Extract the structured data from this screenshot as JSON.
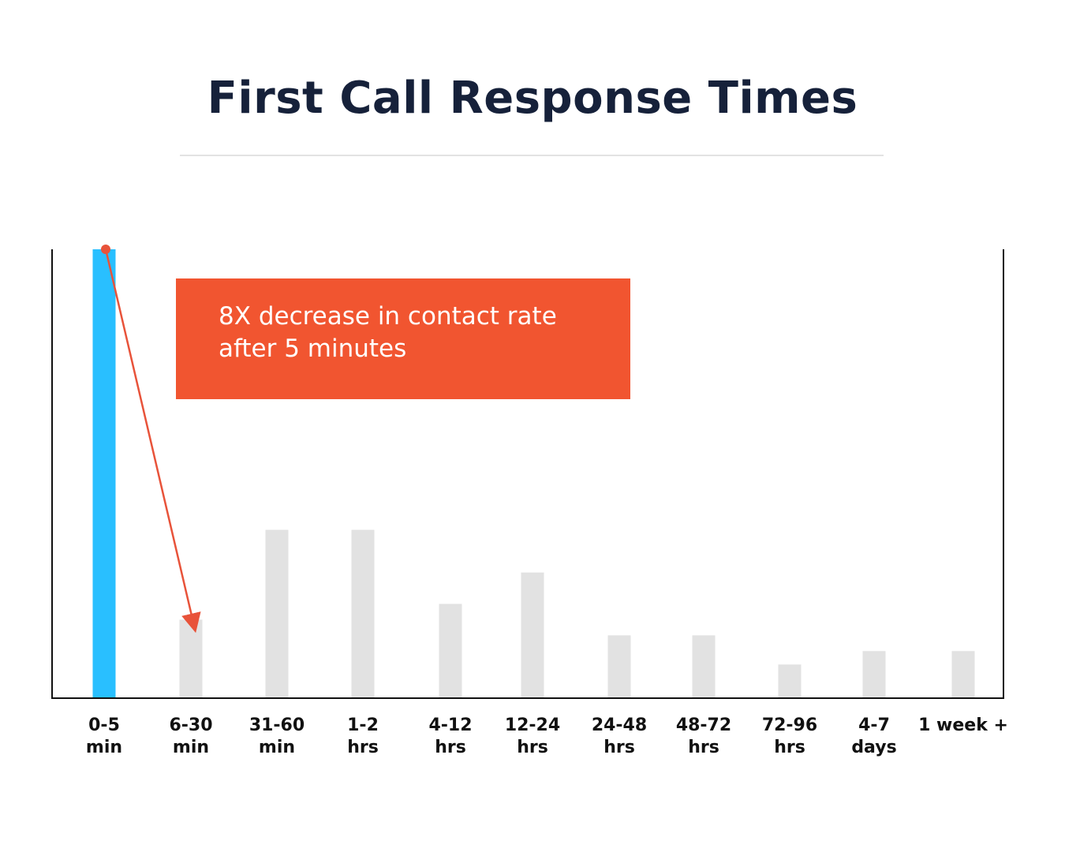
{
  "title": "First Call Response Times",
  "annotation": {
    "line1": "8X decrease in contact rate",
    "line2": "after 5 minutes",
    "color": "#f15530"
  },
  "colors": {
    "highlight": "#29bfff",
    "muted": "#e2e2e2",
    "axis": "#111111",
    "arrow": "#e8533a"
  },
  "chart_data": {
    "type": "bar",
    "title": "First Call Response Times",
    "xlabel": "",
    "ylabel": "",
    "ylim": [
      0,
      100
    ],
    "grid": false,
    "highlight_index": 0,
    "categories": [
      [
        "0-5",
        "min"
      ],
      [
        "6-30",
        "min"
      ],
      [
        "31-60",
        "min"
      ],
      [
        "1-2",
        "hrs"
      ],
      [
        "4-12",
        "hrs"
      ],
      [
        "12-24",
        "hrs"
      ],
      [
        "24-48",
        "hrs"
      ],
      [
        "48-72",
        "hrs"
      ],
      [
        "72-96",
        "hrs"
      ],
      [
        "4-7",
        "days"
      ],
      [
        "1 week +",
        ""
      ]
    ],
    "values": [
      100,
      17.5,
      37.5,
      37.5,
      21,
      28,
      14,
      14,
      7.5,
      10.5,
      10.5
    ],
    "annotation": {
      "text": "8X decrease in contact rate after 5 minutes",
      "from_index": 0,
      "to_index": 1
    }
  }
}
